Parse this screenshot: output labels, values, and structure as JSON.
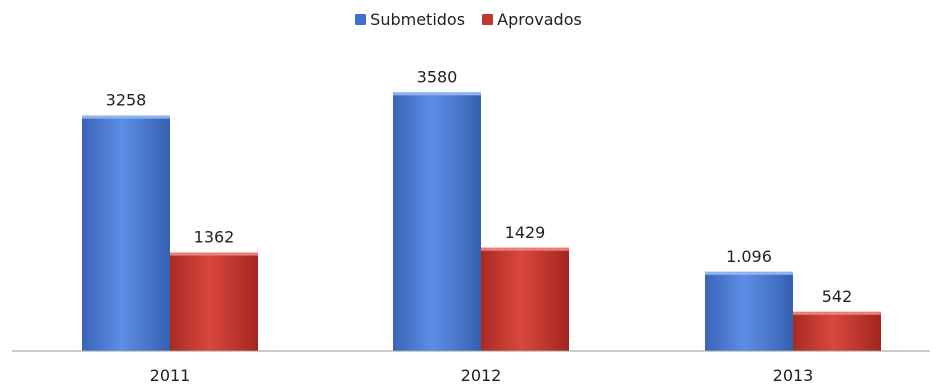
{
  "chart_data": {
    "type": "bar",
    "title": "",
    "xlabel": "",
    "ylabel": "",
    "categories": [
      "2011",
      "2012",
      "2013"
    ],
    "series": [
      {
        "name": "Submetidos",
        "values": [
          3258,
          3580,
          1096
        ],
        "labels": [
          "3258",
          "3580",
          "1.096"
        ],
        "color": "#4472C4"
      },
      {
        "name": "Aprovados",
        "values": [
          1362,
          1429,
          542
        ],
        "labels": [
          "1362",
          "1429",
          "542"
        ],
        "color": "#C0392B"
      }
    ],
    "ylim": [
      0,
      4000
    ],
    "grid": false,
    "legend_position": "top"
  }
}
